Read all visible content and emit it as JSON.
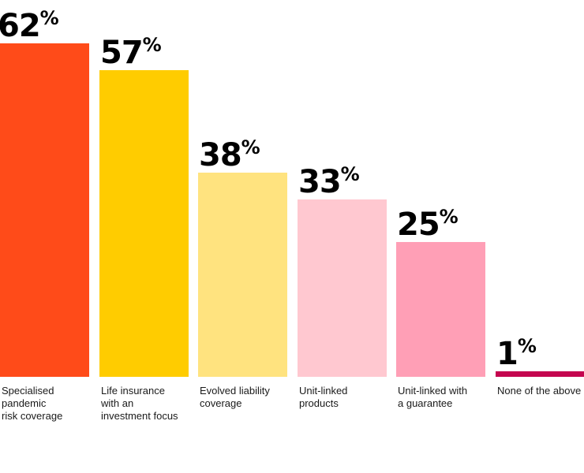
{
  "chart_data": {
    "type": "bar",
    "categories": [
      "Specialised\npandemic\nrisk coverage",
      "Life insurance\nwith an\ninvestment focus",
      "Evolved liability\ncoverage",
      "Unit-linked\nproducts",
      "Unit-linked with\na guarantee",
      "None of the above"
    ],
    "values": [
      62,
      57,
      38,
      33,
      25,
      1
    ],
    "value_labels": [
      "62",
      "57",
      "38",
      "33",
      "25",
      "1"
    ],
    "unit": "%",
    "colors": [
      "#ff4b19",
      "#ffcc00",
      "#ffe37f",
      "#ffc8d0",
      "#ff9fb6",
      "#c4064f"
    ],
    "ylim": [
      0,
      62
    ],
    "grid": false,
    "title": "",
    "xlabel": "",
    "ylabel": ""
  }
}
